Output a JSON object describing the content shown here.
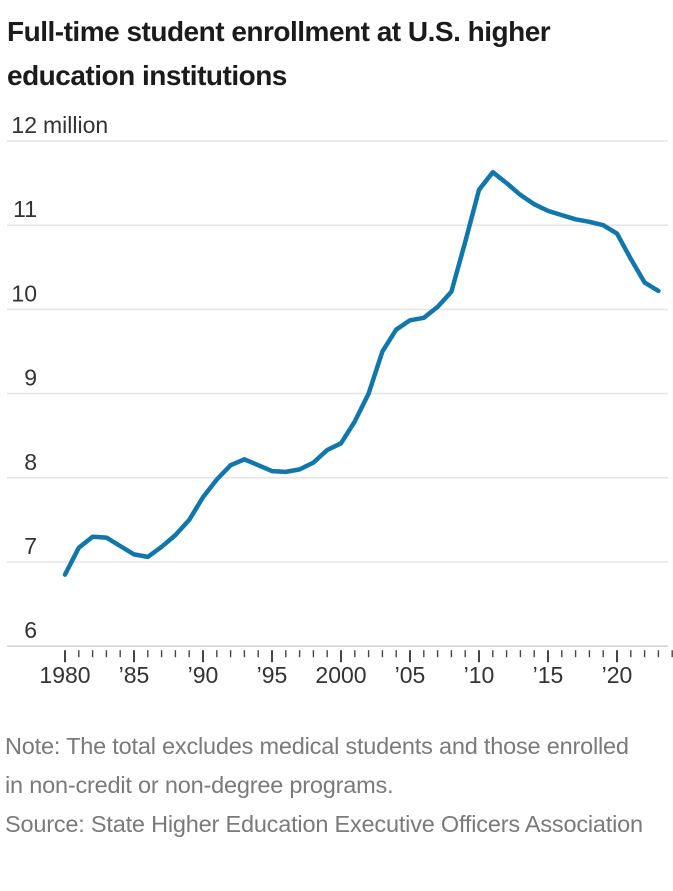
{
  "title": {
    "line1": "Full-time student enrollment at U.S. higher",
    "line2": "education institutions"
  },
  "note": "Note: The total excludes medical students and those enrolled in non-credit or non-degree programs.",
  "source": "Source: State Higher Education Executive Officers Association",
  "colors": {
    "line": "#1177ab",
    "grid": "#e6e6e6",
    "axis_line": "#d4d4d4",
    "tick": "#454545",
    "title_text": "#1b1b1b",
    "axis_text": "#333333",
    "note_text": "#7a7a7a",
    "background": "#ffffff"
  },
  "chart_data": {
    "type": "line",
    "title": "Full-time student enrollment at U.S. higher education institutions",
    "xlabel": "",
    "ylabel": "million",
    "ylim": [
      6,
      12
    ],
    "grid": "horizontal",
    "legend": "none",
    "yticks": [
      {
        "value": 12,
        "label": "12",
        "suffix": "million"
      },
      {
        "value": 11,
        "label": "11",
        "suffix": ""
      },
      {
        "value": 10,
        "label": "10",
        "suffix": ""
      },
      {
        "value": 9,
        "label": "9",
        "suffix": ""
      },
      {
        "value": 8,
        "label": "8",
        "suffix": ""
      },
      {
        "value": 7,
        "label": "7",
        "suffix": ""
      },
      {
        "value": 6,
        "label": "6",
        "suffix": ""
      }
    ],
    "x_axis": {
      "start_year": 1980,
      "end_year": 2024,
      "minor_tick_every": 1,
      "major_tick_every": 5,
      "tick_labels": [
        {
          "year": 1980,
          "label": "1980"
        },
        {
          "year": 1985,
          "label": "’85"
        },
        {
          "year": 1990,
          "label": "’90"
        },
        {
          "year": 1995,
          "label": "’95"
        },
        {
          "year": 2000,
          "label": "2000"
        },
        {
          "year": 2005,
          "label": "’05"
        },
        {
          "year": 2010,
          "label": "’10"
        },
        {
          "year": 2015,
          "label": "’15"
        },
        {
          "year": 2020,
          "label": "’20"
        }
      ]
    },
    "series": [
      {
        "name": "Full-time student enrollment (millions)",
        "years": [
          1980,
          1981,
          1982,
          1983,
          1984,
          1985,
          1986,
          1987,
          1988,
          1989,
          1990,
          1991,
          1992,
          1993,
          1994,
          1995,
          1996,
          1997,
          1998,
          1999,
          2000,
          2001,
          2002,
          2003,
          2004,
          2005,
          2006,
          2007,
          2008,
          2009,
          2010,
          2011,
          2012,
          2013,
          2014,
          2015,
          2016,
          2017,
          2018,
          2019,
          2020,
          2021,
          2022,
          2023
        ],
        "values": [
          6.85,
          7.17,
          7.3,
          7.29,
          7.19,
          7.09,
          7.06,
          7.18,
          7.32,
          7.5,
          7.77,
          7.98,
          8.15,
          8.22,
          8.15,
          8.08,
          8.07,
          8.1,
          8.18,
          8.33,
          8.41,
          8.67,
          9.0,
          9.5,
          9.76,
          9.87,
          9.9,
          10.03,
          10.21,
          10.8,
          11.42,
          11.63,
          11.5,
          11.36,
          11.25,
          11.17,
          11.12,
          11.07,
          11.04,
          11.0,
          10.9,
          10.6,
          10.32,
          10.22
        ]
      }
    ]
  }
}
